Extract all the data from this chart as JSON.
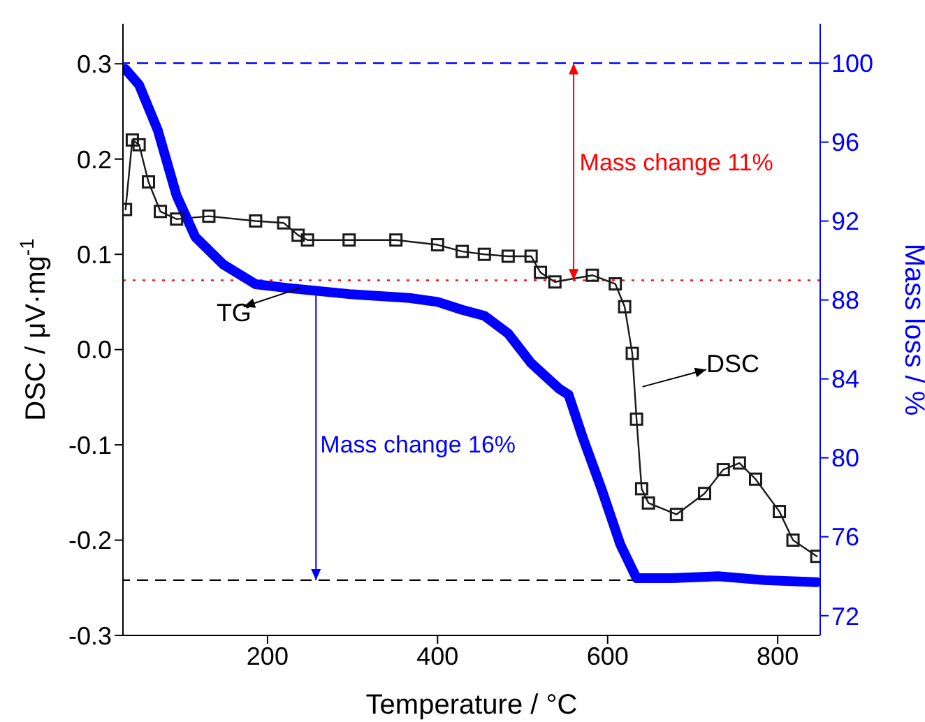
{
  "chart_data": {
    "type": "line",
    "xlabel": "Temperature / °C",
    "ylabel": "DSC / μV·mg$^{-1}$",
    "y2label": "Mass loss / %",
    "xlim": [
      30,
      850
    ],
    "xticks": [
      200,
      400,
      600,
      800
    ],
    "ylim": [
      -0.3,
      0.342
    ],
    "yticks": [
      -0.3,
      -0.2,
      -0.1,
      {
        "value": 0,
        "label": "0.0"
      },
      0.1,
      0.2,
      0.3
    ],
    "y2lim": [
      71,
      102
    ],
    "y2ticks": [
      72,
      76,
      80,
      84,
      88,
      92,
      96,
      100
    ],
    "series": [
      {
        "name": "DSC",
        "color": "#1a1a1a",
        "marker": "square",
        "x": [
          33,
          41,
          49,
          60,
          74,
          93,
          131,
          186,
          219,
          236,
          247,
          296,
          351,
          400,
          429,
          455,
          483,
          510,
          521,
          538,
          582,
          609,
          620,
          629,
          634,
          640,
          648,
          681,
          714,
          736,
          755,
          774,
          802,
          818,
          846
        ],
        "values": [
          0.147,
          0.22,
          0.215,
          0.176,
          0.145,
          0.137,
          0.14,
          0.135,
          0.133,
          0.12,
          0.115,
          0.115,
          0.115,
          0.11,
          0.103,
          0.1,
          0.098,
          0.098,
          0.081,
          0.071,
          0.078,
          0.069,
          0.045,
          -0.004,
          -0.073,
          -0.146,
          -0.161,
          -0.173,
          -0.151,
          -0.126,
          -0.119,
          -0.136,
          -0.17,
          -0.2,
          -0.217
        ]
      },
      {
        "name": "TG",
        "color": "#0000ff",
        "axis": "y2",
        "marker": "none",
        "x": [
          33,
          49,
          71,
          93,
          115,
          148,
          186,
          225,
          296,
          367,
          400,
          429,
          455,
          483,
          510,
          543,
          554,
          571,
          593,
          615,
          634,
          675,
          730,
          785,
          846
        ],
        "values": [
          99.7,
          98.9,
          96.6,
          93.3,
          91.2,
          89.8,
          88.8,
          88.6,
          88.3,
          88.1,
          87.9,
          87.5,
          87.2,
          86.3,
          84.8,
          83.5,
          83.2,
          81.0,
          78.4,
          75.6,
          73.9,
          73.9,
          74.0,
          73.8,
          73.7
        ]
      }
    ],
    "ref_lines": [
      {
        "axis": "y2",
        "value": 100,
        "color": "#0000ff",
        "line_style": "dashed"
      },
      {
        "axis": "y2",
        "value": 89,
        "color": "#ff0000",
        "line_style": "dotted"
      },
      {
        "axis": "y2",
        "value": 73.8,
        "color": "#000000",
        "line_style": "dashed"
      }
    ],
    "annotations": [
      "Mass change 11%",
      "Mass change 16%"
    ]
  }
}
